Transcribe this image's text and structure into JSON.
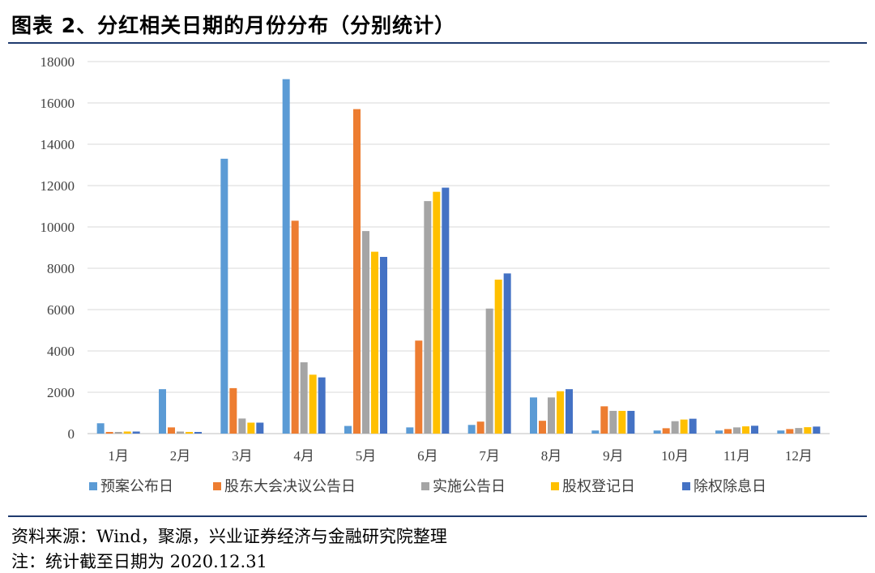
{
  "title": "图表 2、分红相关日期的月份分布（分别统计）",
  "source": "资料来源：Wind，聚源，兴业证券经济与金融研究院整理",
  "note": "注：统计截至日期为 2020.12.31",
  "chart_data": {
    "type": "bar",
    "categories": [
      "1月",
      "2月",
      "3月",
      "4月",
      "5月",
      "6月",
      "7月",
      "8月",
      "9月",
      "10月",
      "11月",
      "12月"
    ],
    "ylim": [
      0,
      18000
    ],
    "yticks": [
      "0",
      "2000",
      "4000",
      "6000",
      "8000",
      "10000",
      "12000",
      "14000",
      "16000",
      "18000"
    ],
    "grid": true,
    "legend_position": "bottom",
    "series": [
      {
        "name": "预案公布日",
        "color": "#5b9bd5",
        "values": [
          500,
          2150,
          13300,
          17150,
          370,
          300,
          420,
          1750,
          150,
          150,
          150,
          150
        ]
      },
      {
        "name": "股东大会决议公告日",
        "color": "#ed7d31",
        "values": [
          80,
          300,
          2200,
          10300,
          15700,
          4500,
          580,
          620,
          1320,
          260,
          220,
          220
        ]
      },
      {
        "name": "实施公告日",
        "color": "#a5a5a5",
        "values": [
          80,
          100,
          730,
          3450,
          9800,
          11250,
          6050,
          1750,
          1100,
          600,
          300,
          270
        ]
      },
      {
        "name": "股权登记日",
        "color": "#ffc000",
        "values": [
          100,
          80,
          530,
          2850,
          8800,
          11700,
          7450,
          2050,
          1100,
          680,
          350,
          310
        ]
      },
      {
        "name": "除权除息日",
        "color": "#4472c4",
        "values": [
          100,
          80,
          530,
          2720,
          8550,
          11900,
          7750,
          2150,
          1100,
          720,
          380,
          340
        ]
      }
    ]
  }
}
